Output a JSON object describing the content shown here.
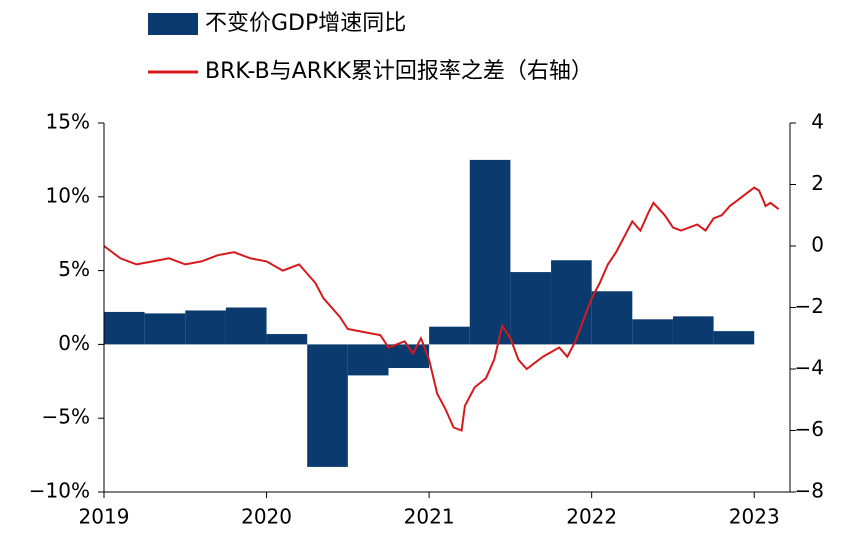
{
  "chart_data": {
    "type": "bar",
    "xlim": [
      2019,
      2023.22
    ],
    "xticks": [
      2019,
      2020,
      2021,
      2022,
      2023
    ],
    "ylim": [
      -10,
      15
    ],
    "yticks": [
      {
        "value": -10,
        "label": "−10%"
      },
      {
        "value": -5,
        "label": "−5%"
      },
      {
        "value": 0,
        "label": "0%"
      },
      {
        "value": 5,
        "label": "5%"
      },
      {
        "value": 10,
        "label": "10%"
      },
      {
        "value": 15,
        "label": "15%"
      }
    ],
    "y2lim": [
      -8,
      4
    ],
    "y2ticks": [
      {
        "value": -8,
        "label": "−8"
      },
      {
        "value": -6,
        "label": "−6"
      },
      {
        "value": -4,
        "label": "−4"
      },
      {
        "value": -2,
        "label": "−2"
      },
      0,
      2,
      4
    ],
    "legend": "top-left",
    "series": [
      {
        "name": "不变价GDP增速同比",
        "type": "bar",
        "color": "#0b3b6e",
        "x": [
          2019,
          2019.25,
          2019.5,
          2019.75,
          2020,
          2020.25,
          2020.5,
          2020.75,
          2021,
          2021.25,
          2021.5,
          2021.75,
          2022,
          2022.25,
          2022.5,
          2022.75
        ],
        "values": [
          2.2,
          2.1,
          2.3,
          2.5,
          0.7,
          -8.3,
          -2.1,
          -1.6,
          1.2,
          12.5,
          4.9,
          5.7,
          3.6,
          1.7,
          1.9,
          0.9
        ]
      },
      {
        "name": "BRK-B与ARKK累计回报率之差（右轴）",
        "type": "line",
        "axis": "y2",
        "color": "#d7191c",
        "x": [
          2019,
          2019.1,
          2019.2,
          2019.3,
          2019.4,
          2019.5,
          2019.6,
          2019.7,
          2019.8,
          2019.9,
          2020,
          2020.1,
          2020.2,
          2020.3,
          2020.35,
          2020.45,
          2020.5,
          2020.6,
          2020.7,
          2020.75,
          2020.85,
          2020.9,
          2020.95,
          2021,
          2021.05,
          2021.1,
          2021.15,
          2021.2,
          2021.22,
          2021.28,
          2021.35,
          2021.4,
          2021.45,
          2021.5,
          2021.55,
          2021.6,
          2021.7,
          2021.8,
          2021.85,
          2021.9,
          2021.95,
          2022,
          2022.05,
          2022.1,
          2022.15,
          2022.2,
          2022.25,
          2022.3,
          2022.35,
          2022.38,
          2022.45,
          2022.5,
          2022.55,
          2022.65,
          2022.7,
          2022.75,
          2022.8,
          2022.85,
          2022.9,
          2022.95,
          2023,
          2023.03,
          2023.07,
          2023.1,
          2023.15
        ],
        "values": [
          0,
          -0.4,
          -0.6,
          -0.5,
          -0.4,
          -0.6,
          -0.5,
          -0.3,
          -0.2,
          -0.4,
          -0.5,
          -0.8,
          -0.6,
          -1.2,
          -1.7,
          -2.3,
          -2.7,
          -2.8,
          -2.9,
          -3.3,
          -3.1,
          -3.5,
          -3.0,
          -3.7,
          -4.8,
          -5.3,
          -5.9,
          -6.0,
          -5.2,
          -4.6,
          -4.3,
          -3.7,
          -2.6,
          -3.0,
          -3.7,
          -4.0,
          -3.6,
          -3.3,
          -3.6,
          -3.1,
          -2.4,
          -1.7,
          -1.2,
          -0.6,
          -0.2,
          0.3,
          0.8,
          0.5,
          1.1,
          1.4,
          1.0,
          0.6,
          0.5,
          0.7,
          0.5,
          0.9,
          1.0,
          1.3,
          1.5,
          1.7,
          1.9,
          1.8,
          1.3,
          1.4,
          1.2
        ]
      }
    ]
  }
}
